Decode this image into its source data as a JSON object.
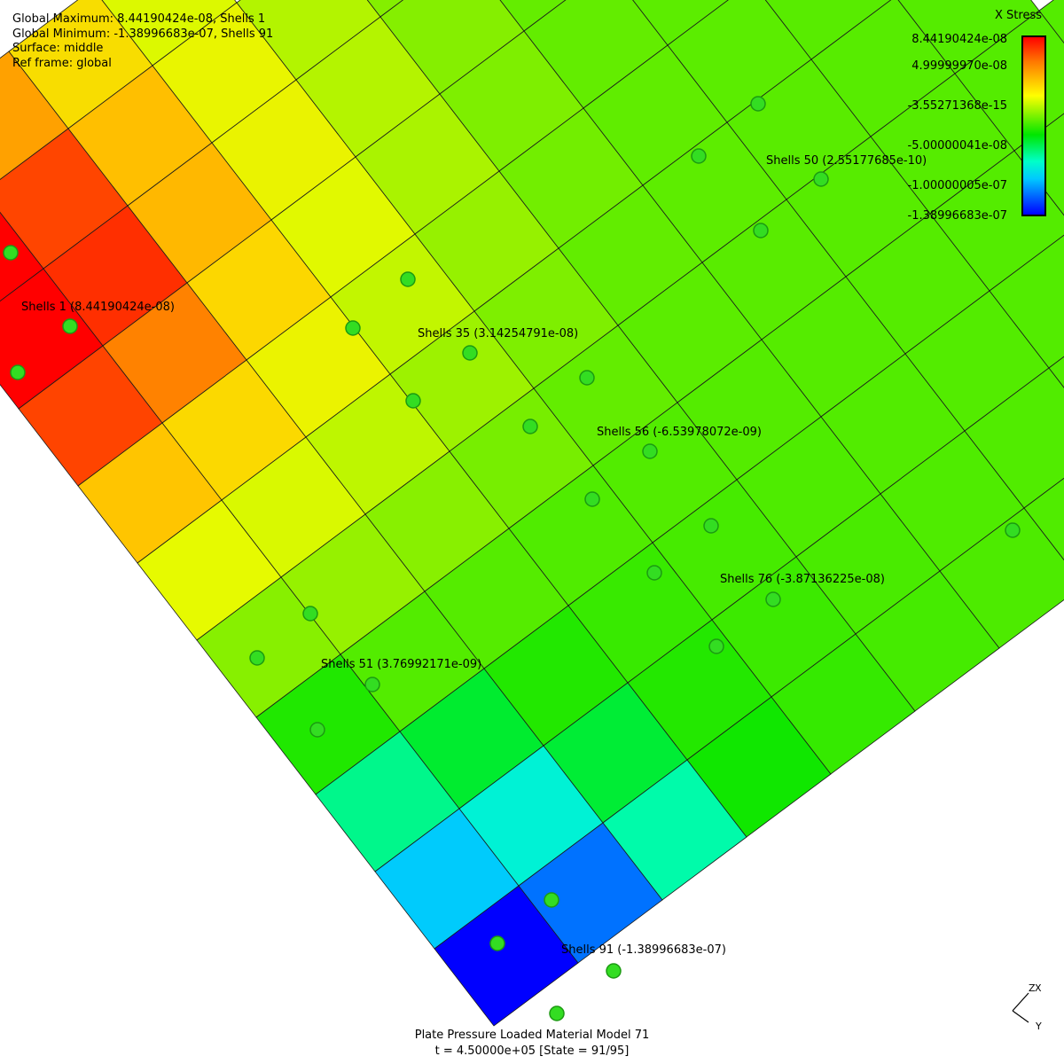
{
  "info": {
    "global_max": "Global Maximum: 8.44190424e-08, Shells 1",
    "global_min": "Global Minimum: -1.38996683e-07, Shells 91",
    "surface": "Surface: middle",
    "ref_frame": "Ref frame: global"
  },
  "legend": {
    "title": "X Stress",
    "ticks": [
      "8.44190424e-08",
      "4.99999970e-08",
      "-3.55271368e-15",
      "-5.00000041e-08",
      "-1.00000005e-07",
      "-1.38996683e-07"
    ]
  },
  "callouts": [
    {
      "label": "Shells 1 (8.44190424e-08)"
    },
    {
      "label": "Shells 50 (2.55177685e-10)"
    },
    {
      "label": "Shells 35 (3.14254791e-08)"
    },
    {
      "label": "Shells 56 (-6.53978072e-09)"
    },
    {
      "label": "Shells 76 (-3.87136225e-08)"
    },
    {
      "label": "Shells 51 (3.76992171e-09)"
    },
    {
      "label": "Shells 91 (-1.38996683e-07)"
    }
  ],
  "footer": {
    "title": "Plate Pressure Loaded  Material Model 71",
    "state": "t = 4.50000e+05 [State = 91/95]"
  },
  "axes": {
    "z": "Z",
    "x": "X",
    "y": "Y"
  }
}
